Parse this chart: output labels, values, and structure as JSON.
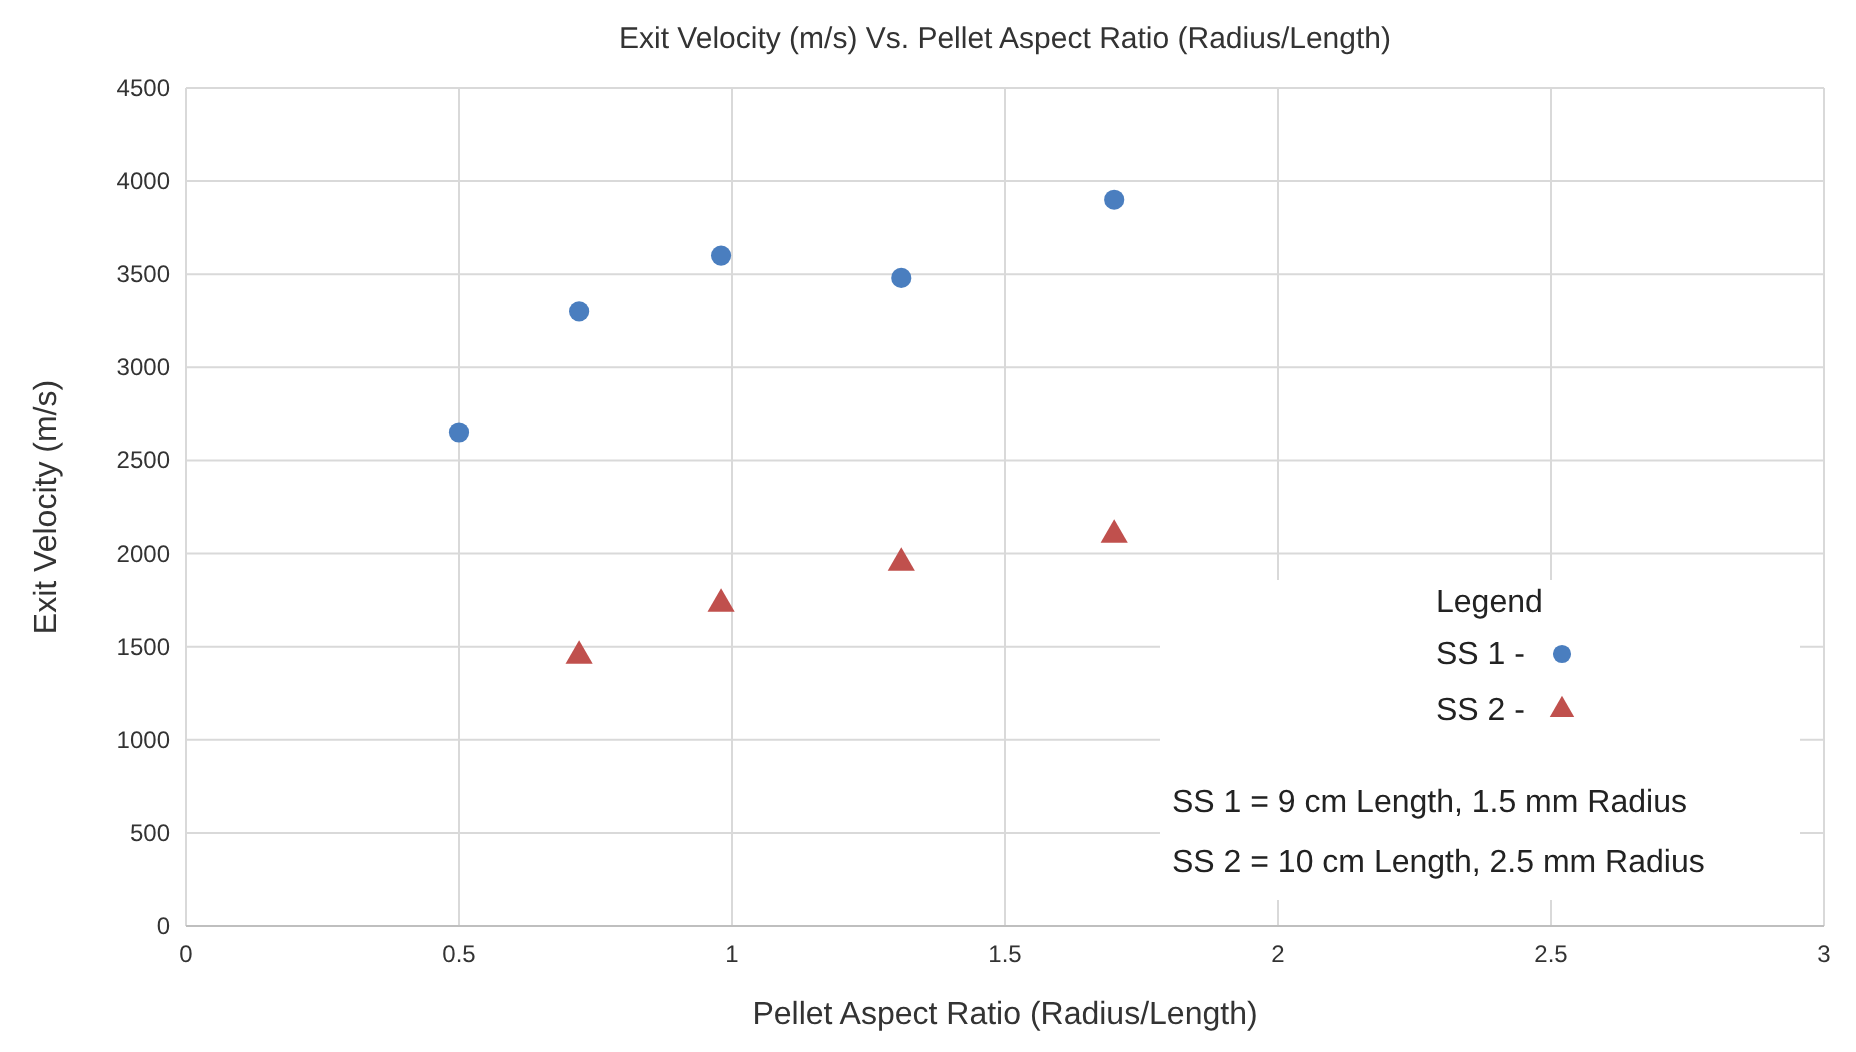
{
  "chart_data": {
    "type": "scatter",
    "title": "Exit Velocity (m/s) Vs. Pellet Aspect Ratio (Radius/Length)",
    "xlabel": "Pellet Aspect Ratio (Radius/Length)",
    "ylabel": "Exit Velocity (m/s)",
    "xlim": [
      0,
      3
    ],
    "xticks": [
      0,
      0.5,
      1,
      1.5,
      2,
      2.5,
      3
    ],
    "ylim": [
      0,
      4500
    ],
    "yticks": [
      0,
      500,
      1000,
      1500,
      2000,
      2500,
      3000,
      3500,
      4000,
      4500
    ],
    "grid": true,
    "legend": "bottom right",
    "legend_title": "Legend",
    "series": [
      {
        "name": "SS 1 -",
        "color": "#4a7ebf",
        "marker": "circle",
        "x": [
          0.5,
          0.72,
          0.98,
          1.31,
          1.7
        ],
        "values": [
          2650,
          3300,
          3600,
          3480,
          3900
        ]
      },
      {
        "name": "SS 2 -",
        "color": "#c0504d",
        "marker": "triangle",
        "x": [
          0.72,
          0.98,
          1.31,
          1.7
        ],
        "values": [
          1450,
          1730,
          1950,
          2100
        ]
      }
    ],
    "annotations": [
      "SS 1 = 9 cm Length, 1.5 mm Radius",
      "SS 2 = 10 cm Length, 2.5 mm Radius"
    ]
  }
}
